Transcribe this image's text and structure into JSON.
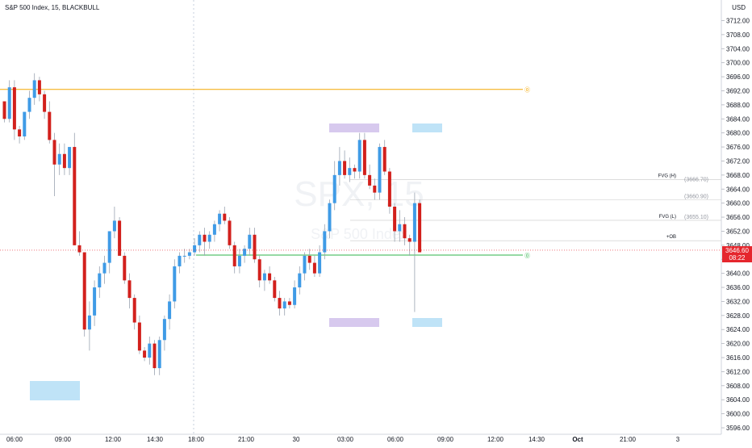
{
  "header": {
    "symbol_title": "S&P 500 Index, 15, BLACKBULL",
    "currency": "USD"
  },
  "watermark": {
    "big": "SPX, 15",
    "small": "S&P 500 Index"
  },
  "last_price": {
    "value": 3646.6,
    "label": "3646.60",
    "countdown": "08:22",
    "color": "#e5262d"
  },
  "chart_data": {
    "type": "candlestick",
    "ylim": [
      3594,
      3716
    ],
    "y_ticks": [
      "3596.00",
      "3600.00",
      "3604.00",
      "3608.00",
      "3612.00",
      "3616.00",
      "3620.00",
      "3624.00",
      "3628.00",
      "3632.00",
      "3636.00",
      "3640.00",
      "3644.00",
      "3648.00",
      "3652.00",
      "3656.00",
      "3660.00",
      "3664.00",
      "3668.00",
      "3672.00",
      "3676.00",
      "3680.00",
      "3684.00",
      "3688.00",
      "3692.00",
      "3696.00",
      "3700.00",
      "3704.00",
      "3708.00",
      "3712.00"
    ],
    "x_ticks": [
      "06:00",
      "09:00",
      "12:00",
      "14:30",
      "18:00",
      "21:00",
      "30",
      "03:00",
      "06:00",
      "09:00",
      "12:00",
      "14:30",
      "Oct",
      "21:00",
      "3"
    ],
    "colors": {
      "up": "#3f9be6",
      "down": "#d2201c"
    },
    "candles": [
      [
        3689,
        3689,
        3683,
        3684
      ],
      [
        3684,
        3695,
        3683,
        3693
      ],
      [
        3693,
        3695,
        3678,
        3681
      ],
      [
        3681,
        3682,
        3677,
        3679
      ],
      [
        3679,
        3686,
        3678,
        3686
      ],
      [
        3686,
        3692,
        3684,
        3690
      ],
      [
        3690,
        3697,
        3688,
        3695
      ],
      [
        3695,
        3696,
        3689,
        3691
      ],
      [
        3691,
        3692,
        3684,
        3686
      ],
      [
        3686,
        3689,
        3677,
        3678
      ],
      [
        3678,
        3680,
        3662,
        3671
      ],
      [
        3671,
        3677,
        3668,
        3674
      ],
      [
        3674,
        3677,
        3668,
        3670
      ],
      [
        3670,
        3676,
        3668,
        3676
      ],
      [
        3676,
        3680,
        3648,
        3648
      ],
      [
        3648,
        3652,
        3645,
        3646
      ],
      [
        3646,
        3646,
        3622,
        3624
      ],
      [
        3624,
        3632,
        3618,
        3628
      ],
      [
        3628,
        3638,
        3625,
        3636
      ],
      [
        3636,
        3642,
        3633,
        3640
      ],
      [
        3640,
        3645,
        3637,
        3643
      ],
      [
        3643,
        3652,
        3640,
        3652
      ],
      [
        3652,
        3659,
        3650,
        3655
      ],
      [
        3655,
        3656,
        3645,
        3645
      ],
      [
        3645,
        3646,
        3637,
        3638
      ],
      [
        3638,
        3640,
        3630,
        3633
      ],
      [
        3633,
        3634,
        3624,
        3626
      ],
      [
        3626,
        3628,
        3617,
        3618
      ],
      [
        3618,
        3619,
        3615,
        3616
      ],
      [
        3616,
        3622,
        3614,
        3620
      ],
      [
        3620,
        3621,
        3611,
        3613
      ],
      [
        3613,
        3622,
        3611,
        3621
      ],
      [
        3621,
        3628,
        3618,
        3627
      ],
      [
        3627,
        3634,
        3624,
        3632
      ],
      [
        3632,
        3644,
        3630,
        3642
      ],
      [
        3642,
        3646,
        3640,
        3645
      ],
      [
        3645,
        3647,
        3643,
        3645
      ],
      [
        3645,
        3647,
        3644,
        3646
      ],
      [
        3646,
        3650,
        3645,
        3648
      ],
      [
        3648,
        3652,
        3646,
        3651
      ],
      [
        3651,
        3653,
        3645,
        3649
      ],
      [
        3649,
        3652,
        3647,
        3651
      ],
      [
        3651,
        3655,
        3649,
        3654
      ],
      [
        3654,
        3658,
        3652,
        3657
      ],
      [
        3657,
        3659,
        3654,
        3655
      ],
      [
        3655,
        3656,
        3647,
        3648
      ],
      [
        3648,
        3649,
        3640,
        3642
      ],
      [
        3642,
        3647,
        3640,
        3645
      ],
      [
        3645,
        3648,
        3643,
        3647
      ],
      [
        3647,
        3653,
        3645,
        3651
      ],
      [
        3651,
        3653,
        3643,
        3644
      ],
      [
        3644,
        3645,
        3636,
        3638
      ],
      [
        3638,
        3641,
        3635,
        3640
      ],
      [
        3640,
        3642,
        3637,
        3638
      ],
      [
        3638,
        3639,
        3632,
        3633
      ],
      [
        3633,
        3635,
        3628,
        3630
      ],
      [
        3630,
        3633,
        3628,
        3632
      ],
      [
        3632,
        3633,
        3630,
        3631
      ],
      [
        3631,
        3638,
        3630,
        3636
      ],
      [
        3636,
        3642,
        3634,
        3640
      ],
      [
        3640,
        3646,
        3638,
        3645
      ],
      [
        3645,
        3647,
        3641,
        3643
      ],
      [
        3643,
        3645,
        3639,
        3640
      ],
      [
        3640,
        3648,
        3639,
        3646
      ],
      [
        3646,
        3654,
        3644,
        3652
      ],
      [
        3652,
        3661,
        3650,
        3660
      ],
      [
        3660,
        3672,
        3658,
        3668
      ],
      [
        3668,
        3676,
        3665,
        3672
      ],
      [
        3672,
        3675,
        3667,
        3668
      ],
      [
        3668,
        3673,
        3666,
        3670
      ],
      [
        3670,
        3671,
        3667,
        3669
      ],
      [
        3669,
        3680,
        3667,
        3678
      ],
      [
        3678,
        3680,
        3667,
        3668
      ],
      [
        3668,
        3671,
        3664,
        3665
      ],
      [
        3665,
        3667,
        3661,
        3663
      ],
      [
        3663,
        3677,
        3661,
        3676
      ],
      [
        3676,
        3678,
        3668,
        3669
      ],
      [
        3669,
        3670,
        3657,
        3659
      ],
      [
        3659,
        3660,
        3649,
        3652
      ],
      [
        3652,
        3658,
        3649,
        3654
      ],
      [
        3654,
        3656,
        3648,
        3650
      ],
      [
        3650,
        3651,
        3645,
        3649
      ],
      [
        3649,
        3663,
        3629,
        3660
      ],
      [
        3660,
        3661,
        3646,
        3646
      ]
    ],
    "levels": [
      {
        "name": "orange-level",
        "price": 3692.4,
        "color": "#f4a700",
        "marker": "⓪"
      },
      {
        "name": "ob-level",
        "price": 3645.2,
        "color": "#2db34a",
        "marker": "⓪"
      },
      {
        "name": "fvg-high-level",
        "price": 3666.7,
        "color": "#c8c8c8",
        "label": "FVG (H)",
        "value_label": "(3666.70)"
      },
      {
        "name": "mid-level",
        "price": 3660.9,
        "color": "#c8c8c8",
        "value_label": "(3660.90)"
      },
      {
        "name": "fvg-low-level",
        "price": 3655.1,
        "color": "#c8c8c8",
        "label": "FVG (L)",
        "value_label": "(3655.10)"
      },
      {
        "name": "plus-ob-level",
        "price": 3649.3,
        "color": "#c8c8c8",
        "label": "+OB"
      }
    ],
    "zones": [
      {
        "name": "session-box-bottom-left",
        "color": "#bfe3f7"
      },
      {
        "name": "session-box-top-purple",
        "color": "#d7c9ee"
      },
      {
        "name": "session-box-bottom-purple",
        "color": "#d7c9ee"
      },
      {
        "name": "session-box-top-blue",
        "color": "#bfe3f7"
      },
      {
        "name": "session-box-bottom-blue",
        "color": "#bfe3f7"
      }
    ]
  }
}
